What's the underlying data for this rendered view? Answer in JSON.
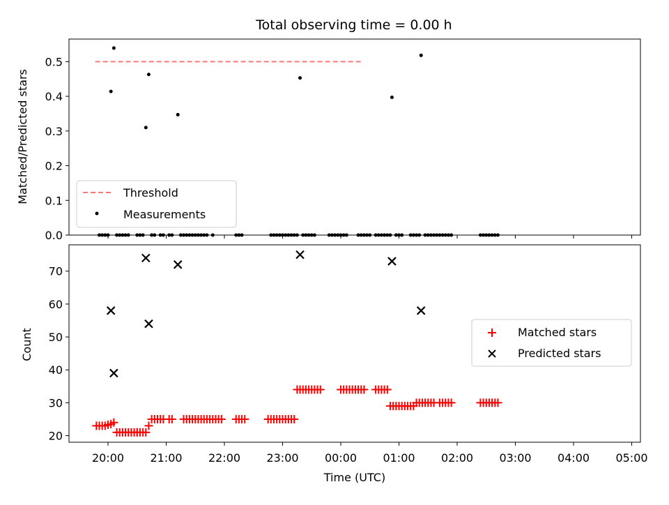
{
  "chart_data": [
    {
      "type": "scatter",
      "title": "Total observing time = 0.00 h",
      "xlabel": "",
      "ylabel": "Matched/Predicted stars",
      "ylim": [
        0,
        0.565
      ],
      "x_units": "hours since 20:00 UTC",
      "x_tick_labels": [
        "20:00",
        "21:00",
        "22:00",
        "23:00",
        "00:00",
        "01:00",
        "02:00",
        "03:00",
        "04:00",
        "05:00"
      ],
      "yticks": [
        "0.0",
        "0.1",
        "0.2",
        "0.3",
        "0.4",
        "0.5"
      ],
      "threshold": {
        "name": "Threshold",
        "value": 0.5,
        "x_range": [
          -0.22,
          4.38
        ],
        "color": "#ff7777"
      },
      "series": [
        {
          "name": "Measurements",
          "color": "#000000",
          "points": [
            [
              -0.15,
              0
            ],
            [
              -0.1,
              0
            ],
            [
              -0.05,
              0
            ],
            [
              0.0,
              0
            ],
            [
              0.05,
              0.414
            ],
            [
              0.1,
              0.539
            ],
            [
              0.15,
              0
            ],
            [
              0.2,
              0
            ],
            [
              0.25,
              0
            ],
            [
              0.3,
              0
            ],
            [
              0.35,
              0
            ],
            [
              0.5,
              0
            ],
            [
              0.55,
              0
            ],
            [
              0.6,
              0
            ],
            [
              0.65,
              0.31
            ],
            [
              0.7,
              0.463
            ],
            [
              0.75,
              0
            ],
            [
              0.8,
              0
            ],
            [
              0.9,
              0
            ],
            [
              0.95,
              0
            ],
            [
              1.05,
              0
            ],
            [
              1.1,
              0
            ],
            [
              1.2,
              0.347
            ],
            [
              1.25,
              0
            ],
            [
              1.3,
              0
            ],
            [
              1.35,
              0
            ],
            [
              1.4,
              0
            ],
            [
              1.45,
              0
            ],
            [
              1.5,
              0
            ],
            [
              1.55,
              0
            ],
            [
              1.6,
              0
            ],
            [
              1.65,
              0
            ],
            [
              1.7,
              0
            ],
            [
              1.8,
              0
            ],
            [
              2.2,
              0
            ],
            [
              2.25,
              0
            ],
            [
              2.3,
              0
            ],
            [
              2.8,
              0
            ],
            [
              2.85,
              0
            ],
            [
              2.9,
              0
            ],
            [
              2.95,
              0
            ],
            [
              3.0,
              0
            ],
            [
              3.05,
              0
            ],
            [
              3.1,
              0
            ],
            [
              3.15,
              0
            ],
            [
              3.2,
              0
            ],
            [
              3.25,
              0
            ],
            [
              3.3,
              0.453
            ],
            [
              3.35,
              0
            ],
            [
              3.4,
              0
            ],
            [
              3.45,
              0
            ],
            [
              3.5,
              0
            ],
            [
              3.55,
              0
            ],
            [
              3.8,
              0
            ],
            [
              3.85,
              0
            ],
            [
              3.9,
              0
            ],
            [
              3.95,
              0
            ],
            [
              4.0,
              0
            ],
            [
              4.05,
              0
            ],
            [
              4.1,
              0
            ],
            [
              4.3,
              0
            ],
            [
              4.35,
              0
            ],
            [
              4.4,
              0
            ],
            [
              4.45,
              0
            ],
            [
              4.5,
              0
            ],
            [
              4.6,
              0
            ],
            [
              4.65,
              0
            ],
            [
              4.7,
              0
            ],
            [
              4.75,
              0
            ],
            [
              4.8,
              0
            ],
            [
              4.85,
              0
            ],
            [
              4.88,
              0.397
            ],
            [
              4.95,
              0
            ],
            [
              5.0,
              0
            ],
            [
              5.05,
              0
            ],
            [
              5.2,
              0
            ],
            [
              5.25,
              0
            ],
            [
              5.3,
              0
            ],
            [
              5.35,
              0
            ],
            [
              5.38,
              0.518
            ],
            [
              5.45,
              0
            ],
            [
              5.5,
              0
            ],
            [
              5.55,
              0
            ],
            [
              5.6,
              0
            ],
            [
              5.65,
              0
            ],
            [
              5.7,
              0
            ],
            [
              5.75,
              0
            ],
            [
              5.8,
              0
            ],
            [
              5.85,
              0
            ],
            [
              5.9,
              0
            ],
            [
              6.4,
              0
            ],
            [
              6.45,
              0
            ],
            [
              6.5,
              0
            ],
            [
              6.55,
              0
            ],
            [
              6.6,
              0
            ],
            [
              6.65,
              0
            ],
            [
              6.7,
              0
            ]
          ]
        }
      ],
      "legend": {
        "placement": "lower-left",
        "entries": [
          "Threshold",
          "Measurements"
        ]
      }
    },
    {
      "type": "scatter",
      "title": "",
      "xlabel": "Time (UTC)",
      "ylabel": "Count",
      "ylim": [
        18,
        78
      ],
      "x_units": "hours since 20:00 UTC",
      "x_tick_labels": [
        "20:00",
        "21:00",
        "22:00",
        "23:00",
        "00:00",
        "01:00",
        "02:00",
        "03:00",
        "04:00",
        "05:00"
      ],
      "yticks": [
        "20",
        "30",
        "40",
        "50",
        "60",
        "70"
      ],
      "series": [
        {
          "name": "Matched stars",
          "color": "#ff0000",
          "marker": "plus",
          "points": [
            [
              -0.2,
              23
            ],
            [
              -0.15,
              23
            ],
            [
              -0.1,
              23
            ],
            [
              -0.05,
              23
            ],
            [
              0.0,
              23.3
            ],
            [
              0.05,
              23.5
            ],
            [
              0.1,
              24
            ],
            [
              0.15,
              21
            ],
            [
              0.2,
              21
            ],
            [
              0.25,
              21
            ],
            [
              0.3,
              21
            ],
            [
              0.35,
              21
            ],
            [
              0.4,
              21
            ],
            [
              0.45,
              21
            ],
            [
              0.5,
              21
            ],
            [
              0.5,
              21
            ],
            [
              0.55,
              21
            ],
            [
              0.6,
              21
            ],
            [
              0.65,
              21
            ],
            [
              0.7,
              23
            ],
            [
              0.75,
              25
            ],
            [
              0.8,
              25
            ],
            [
              0.85,
              25
            ],
            [
              0.9,
              25
            ],
            [
              0.95,
              25
            ],
            [
              1.05,
              25
            ],
            [
              1.1,
              25
            ],
            [
              1.3,
              25
            ],
            [
              1.35,
              25
            ],
            [
              1.4,
              25
            ],
            [
              1.45,
              25
            ],
            [
              1.5,
              25
            ],
            [
              1.55,
              25
            ],
            [
              1.6,
              25
            ],
            [
              1.65,
              25
            ],
            [
              1.7,
              25
            ],
            [
              1.75,
              25
            ],
            [
              1.8,
              25
            ],
            [
              1.85,
              25
            ],
            [
              1.9,
              25
            ],
            [
              1.95,
              25
            ],
            [
              2.2,
              25
            ],
            [
              2.25,
              25
            ],
            [
              2.3,
              25
            ],
            [
              2.35,
              25
            ],
            [
              2.75,
              25
            ],
            [
              2.8,
              25
            ],
            [
              2.85,
              25
            ],
            [
              2.9,
              25
            ],
            [
              2.95,
              25
            ],
            [
              3.0,
              25
            ],
            [
              3.05,
              25
            ],
            [
              3.1,
              25
            ],
            [
              3.15,
              25
            ],
            [
              3.2,
              25
            ],
            [
              3.25,
              34
            ],
            [
              3.3,
              34
            ],
            [
              3.35,
              34
            ],
            [
              3.4,
              34
            ],
            [
              3.45,
              34
            ],
            [
              3.5,
              34
            ],
            [
              3.55,
              34
            ],
            [
              3.6,
              34
            ],
            [
              3.65,
              34
            ],
            [
              4.0,
              34
            ],
            [
              4.05,
              34
            ],
            [
              4.1,
              34
            ],
            [
              4.15,
              34
            ],
            [
              4.2,
              34
            ],
            [
              4.25,
              34
            ],
            [
              4.3,
              34
            ],
            [
              4.35,
              34
            ],
            [
              4.4,
              34
            ],
            [
              4.6,
              34
            ],
            [
              4.65,
              34
            ],
            [
              4.7,
              34
            ],
            [
              4.75,
              34
            ],
            [
              4.8,
              34
            ],
            [
              4.85,
              29
            ],
            [
              4.9,
              29
            ],
            [
              4.95,
              29
            ],
            [
              5.0,
              29
            ],
            [
              5.05,
              29
            ],
            [
              5.1,
              29
            ],
            [
              5.15,
              29
            ],
            [
              5.2,
              29
            ],
            [
              5.25,
              29
            ],
            [
              5.3,
              30
            ],
            [
              5.35,
              30
            ],
            [
              5.4,
              30
            ],
            [
              5.45,
              30
            ],
            [
              5.5,
              30
            ],
            [
              5.55,
              30
            ],
            [
              5.6,
              30
            ],
            [
              5.7,
              30
            ],
            [
              5.75,
              30
            ],
            [
              5.8,
              30
            ],
            [
              5.85,
              30
            ],
            [
              5.9,
              30
            ],
            [
              6.4,
              30
            ],
            [
              6.45,
              30
            ],
            [
              6.5,
              30
            ],
            [
              6.55,
              30
            ],
            [
              6.6,
              30
            ],
            [
              6.65,
              30
            ],
            [
              6.7,
              30
            ]
          ]
        },
        {
          "name": "Predicted stars",
          "color": "#000000",
          "marker": "x",
          "points": [
            [
              0.05,
              58
            ],
            [
              0.1,
              39
            ],
            [
              0.65,
              74
            ],
            [
              0.7,
              54
            ],
            [
              1.2,
              72
            ],
            [
              3.3,
              75
            ],
            [
              4.88,
              73
            ],
            [
              5.38,
              58
            ]
          ]
        }
      ],
      "legend": {
        "placement": "center-right",
        "entries": [
          "Matched stars",
          "Predicted stars"
        ]
      }
    }
  ]
}
